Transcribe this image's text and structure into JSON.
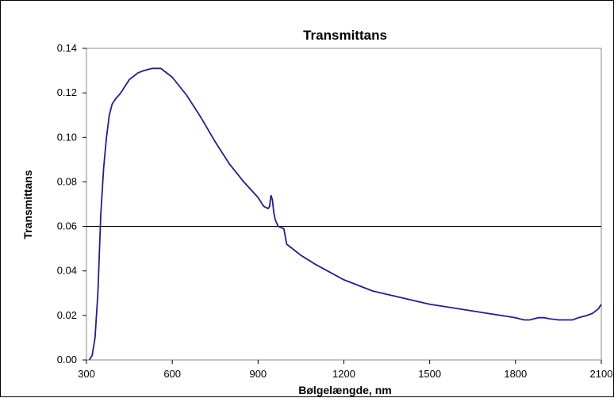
{
  "chart_data": {
    "type": "line",
    "title": "Transmittans",
    "xlabel": "Bølgelængde, nm",
    "ylabel": "Transmittans",
    "xlim": [
      300,
      2100
    ],
    "ylim": [
      0,
      0.14
    ],
    "x_ticks": [
      "300",
      "600",
      "900",
      "1200",
      "1500",
      "1800",
      "2100"
    ],
    "y_ticks": [
      "0.00",
      "0.02",
      "0.04",
      "0.06",
      "0.08",
      "0.10",
      "0.12",
      "0.14"
    ],
    "grid": false,
    "legend": "none",
    "reference_line": {
      "y": 0.06,
      "color": "#000000"
    },
    "series": [
      {
        "color": "#1f1f99",
        "x": [
          310,
          320,
          330,
          340,
          350,
          360,
          370,
          380,
          390,
          400,
          420,
          450,
          480,
          500,
          530,
          560,
          580,
          600,
          650,
          700,
          750,
          800,
          850,
          900,
          920,
          935,
          940,
          945,
          950,
          955,
          960,
          970,
          990,
          1000,
          1050,
          1100,
          1200,
          1300,
          1400,
          1500,
          1600,
          1700,
          1800,
          1830,
          1850,
          1880,
          1900,
          1920,
          1950,
          2000,
          2020,
          2050,
          2070,
          2090,
          2100
        ],
        "y": [
          0.0,
          0.002,
          0.01,
          0.03,
          0.065,
          0.086,
          0.1,
          0.11,
          0.115,
          0.117,
          0.12,
          0.126,
          0.129,
          0.13,
          0.131,
          0.131,
          0.129,
          0.127,
          0.119,
          0.109,
          0.098,
          0.088,
          0.08,
          0.073,
          0.069,
          0.068,
          0.069,
          0.074,
          0.072,
          0.066,
          0.063,
          0.06,
          0.059,
          0.052,
          0.047,
          0.043,
          0.036,
          0.031,
          0.028,
          0.025,
          0.023,
          0.021,
          0.019,
          0.018,
          0.018,
          0.019,
          0.019,
          0.0185,
          0.018,
          0.018,
          0.019,
          0.02,
          0.021,
          0.023,
          0.025
        ]
      }
    ]
  }
}
